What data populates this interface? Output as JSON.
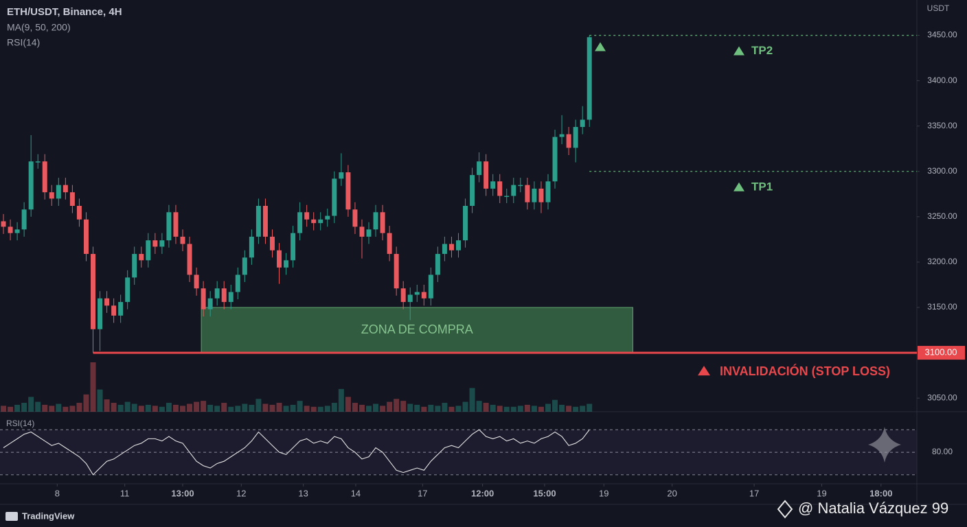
{
  "chart_data": {
    "type": "candlestick",
    "title": "ETH/USDT, Binance, 4H",
    "indicators": [
      "MA(9, 50, 200)",
      "RSI(14)"
    ],
    "y_unit": "USDT",
    "open": [
      3245,
      3239,
      3232,
      3236,
      3258,
      3311,
      3311,
      3277,
      3270,
      3285,
      3277,
      3262,
      3247,
      3209,
      3126,
      3160,
      3152,
      3141,
      3156,
      3183,
      3209,
      3202,
      3224,
      3217,
      3224,
      3255,
      3228,
      3220,
      3186,
      3171,
      3148,
      3160,
      3171,
      3156,
      3167,
      3186,
      3205,
      3228,
      3262,
      3228,
      3213,
      3194,
      3202,
      3232,
      3255,
      3247,
      3243,
      3247,
      3251,
      3292,
      3299,
      3258,
      3239,
      3228,
      3236,
      3255,
      3232,
      3209,
      3171,
      3156,
      3164,
      3167,
      3160,
      3186,
      3209,
      3220,
      3213,
      3224,
      3262,
      3296,
      3311,
      3281,
      3289,
      3273,
      3273,
      3285,
      3285,
      3266,
      3281,
      3266,
      3289,
      3338,
      3341,
      3326,
      3349,
      3357
    ],
    "high": [
      3253,
      3247,
      3244,
      3266,
      3340,
      3319,
      3319,
      3285,
      3293,
      3293,
      3285,
      3270,
      3255,
      3217,
      3168,
      3168,
      3160,
      3164,
      3191,
      3217,
      3217,
      3232,
      3232,
      3232,
      3263,
      3263,
      3236,
      3228,
      3194,
      3179,
      3168,
      3179,
      3179,
      3175,
      3194,
      3213,
      3236,
      3270,
      3270,
      3236,
      3221,
      3210,
      3240,
      3266,
      3263,
      3255,
      3255,
      3259,
      3300,
      3320,
      3307,
      3266,
      3247,
      3244,
      3263,
      3263,
      3240,
      3217,
      3179,
      3172,
      3175,
      3175,
      3194,
      3217,
      3228,
      3228,
      3232,
      3270,
      3304,
      3321,
      3319,
      3297,
      3297,
      3281,
      3293,
      3293,
      3293,
      3289,
      3289,
      3297,
      3346,
      3362,
      3349,
      3357,
      3372,
      3450
    ],
    "low": [
      3231,
      3224,
      3224,
      3228,
      3250,
      3303,
      3269,
      3262,
      3262,
      3269,
      3254,
      3239,
      3201,
      3100,
      3102,
      3144,
      3133,
      3133,
      3148,
      3175,
      3194,
      3194,
      3209,
      3209,
      3216,
      3220,
      3212,
      3178,
      3163,
      3140,
      3140,
      3152,
      3148,
      3148,
      3159,
      3178,
      3197,
      3220,
      3220,
      3205,
      3176,
      3186,
      3194,
      3224,
      3239,
      3235,
      3235,
      3239,
      3243,
      3284,
      3250,
      3231,
      3204,
      3220,
      3228,
      3224,
      3201,
      3163,
      3148,
      3136,
      3156,
      3152,
      3152,
      3178,
      3201,
      3205,
      3205,
      3216,
      3254,
      3288,
      3273,
      3273,
      3265,
      3265,
      3265,
      3277,
      3258,
      3258,
      3254,
      3258,
      3281,
      3330,
      3318,
      3310,
      3341,
      3349
    ],
    "close": [
      3239,
      3232,
      3236,
      3258,
      3311,
      3311,
      3277,
      3270,
      3285,
      3277,
      3262,
      3247,
      3209,
      3126,
      3160,
      3152,
      3141,
      3156,
      3183,
      3209,
      3202,
      3224,
      3217,
      3224,
      3255,
      3228,
      3220,
      3186,
      3171,
      3148,
      3160,
      3171,
      3156,
      3167,
      3186,
      3205,
      3228,
      3262,
      3228,
      3213,
      3194,
      3202,
      3232,
      3255,
      3247,
      3243,
      3247,
      3251,
      3292,
      3299,
      3258,
      3239,
      3228,
      3236,
      3255,
      3232,
      3209,
      3171,
      3156,
      3164,
      3167,
      3160,
      3186,
      3209,
      3220,
      3213,
      3224,
      3262,
      3296,
      3311,
      3281,
      3289,
      3273,
      3273,
      3285,
      3285,
      3266,
      3281,
      3266,
      3289,
      3338,
      3341,
      3326,
      3349,
      3357,
      3448
    ],
    "up_color": "#2b9e8c",
    "down_color": "#e85a5f",
    "volume": [
      12,
      10,
      14,
      18,
      30,
      20,
      14,
      12,
      16,
      10,
      12,
      18,
      35,
      100,
      45,
      25,
      18,
      14,
      20,
      16,
      12,
      14,
      12,
      10,
      18,
      14,
      12,
      16,
      20,
      22,
      14,
      12,
      18,
      10,
      12,
      16,
      14,
      26,
      16,
      14,
      18,
      12,
      14,
      22,
      12,
      10,
      10,
      12,
      18,
      46,
      30,
      18,
      14,
      12,
      16,
      12,
      20,
      26,
      22,
      16,
      14,
      10,
      14,
      12,
      18,
      10,
      12,
      20,
      48,
      22,
      18,
      14,
      12,
      10,
      10,
      12,
      14,
      12,
      10,
      16,
      24,
      14,
      12,
      10,
      12,
      16
    ],
    "ylim": [
      3035,
      3489
    ],
    "yticks": [
      {
        "value": 3450,
        "label": "3450.00"
      },
      {
        "value": 3400,
        "label": "3400.00"
      },
      {
        "value": 3350,
        "label": "3350.00"
      },
      {
        "value": 3300,
        "label": "3300.00"
      },
      {
        "value": 3250,
        "label": "3250.00"
      },
      {
        "value": 3200,
        "label": "3200.00"
      },
      {
        "value": 3150,
        "label": "3150.00"
      },
      {
        "value": 3050,
        "label": "3050.00"
      }
    ],
    "xlim": [
      -0.5,
      132.5
    ],
    "xticks": [
      {
        "value": 7.8,
        "label": "8"
      },
      {
        "value": 17.6,
        "label": "11"
      },
      {
        "value": 26,
        "label": "13:00"
      },
      {
        "value": 34.5,
        "label": "12"
      },
      {
        "value": 43.5,
        "label": "13"
      },
      {
        "value": 51.1,
        "label": "14"
      },
      {
        "value": 60.8,
        "label": "17"
      },
      {
        "value": 69.5,
        "label": "12:00"
      },
      {
        "value": 78.5,
        "label": "15:00"
      },
      {
        "value": 87.1,
        "label": "19"
      },
      {
        "value": 97,
        "label": "20"
      },
      {
        "value": 108.9,
        "label": "17"
      },
      {
        "value": 118.7,
        "label": "19"
      },
      {
        "value": 127.3,
        "label": "18:00"
      }
    ],
    "rsi": {
      "title": "RSI(14)",
      "color": "#e6e6e6",
      "values": [
        82,
        84,
        86,
        88,
        89,
        87,
        85,
        83,
        84,
        82,
        80,
        78,
        75,
        70,
        73,
        76,
        77,
        79,
        81,
        83,
        84,
        86,
        86,
        85,
        87,
        85,
        84,
        80,
        76,
        74,
        73,
        75,
        76,
        78,
        80,
        82,
        85,
        89,
        86,
        83,
        80,
        79,
        82,
        85,
        86,
        84,
        85,
        84,
        87,
        86,
        82,
        80,
        77,
        78,
        82,
        80,
        76,
        72,
        71,
        72,
        73,
        72,
        76,
        79,
        82,
        83,
        82,
        85,
        88,
        90,
        87,
        86,
        87,
        85,
        86,
        84,
        85,
        84,
        86,
        87,
        89,
        87,
        83,
        84,
        86,
        90
      ],
      "ylim": [
        66,
        98
      ],
      "yticks": [
        {
          "value": 80,
          "label": "80.00"
        }
      ],
      "levels": [
        70,
        80,
        90
      ]
    },
    "zone": {
      "label": "ZONA DE COMPRA",
      "x_range": [
        28.7,
        91.3
      ],
      "price_range": [
        3100,
        3150
      ]
    },
    "targets": [
      {
        "label": "TP1",
        "price": 3300
      },
      {
        "label": "TP2",
        "price": 3450
      }
    ],
    "stop_loss": {
      "label": "INVALIDACIÓN (STOP LOSS)",
      "price": 3100,
      "price_label": "3100.00"
    }
  },
  "footer": {
    "brand": "TradingView",
    "watermark": "@ Natalia Vázquez 99"
  }
}
